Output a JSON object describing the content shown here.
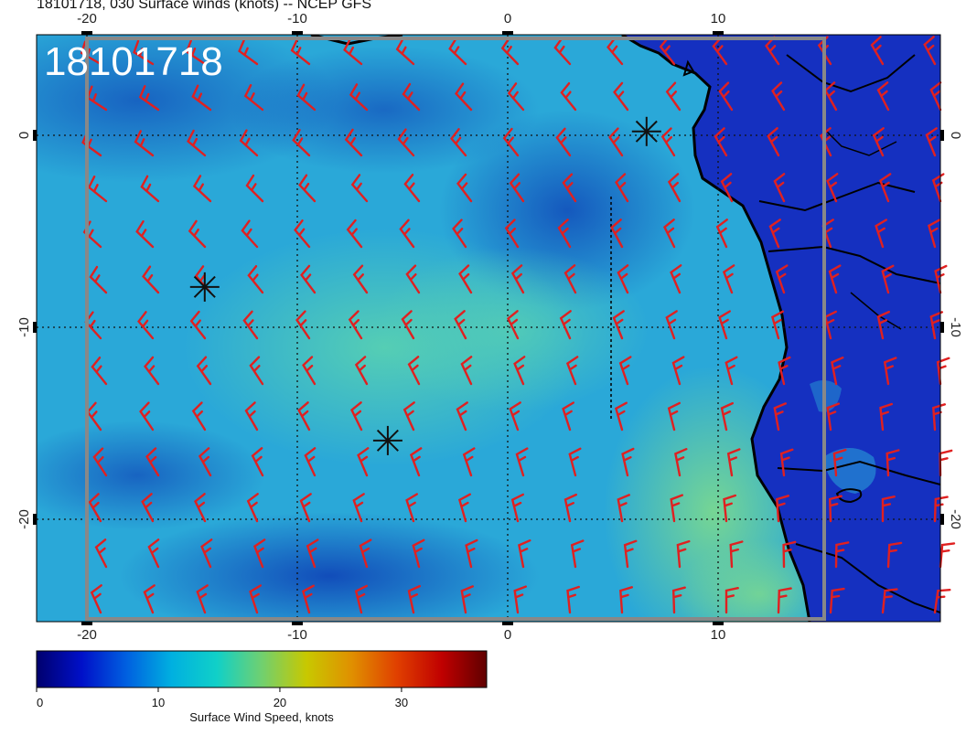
{
  "header": {
    "title": "18101718, 030 Surface winds (knots) -- NCEP GFS"
  },
  "map": {
    "overlay_label": "18101718",
    "lon_ticks": [
      "-20",
      "-10",
      "0",
      "10"
    ],
    "lat_ticks": [
      "0",
      "-10",
      "-20"
    ],
    "ocean_color": "#2aa8d8",
    "land_color": "#1530c0",
    "barb_color": "#e02020",
    "storm_markers": [
      {
        "name": "marker-1",
        "lon": 6.6,
        "lat": 0.2
      },
      {
        "name": "marker-2",
        "lon": -14.4,
        "lat": -7.9
      },
      {
        "name": "marker-3",
        "lon": -5.7,
        "lat": -15.9
      }
    ]
  },
  "colorbar": {
    "label": "Surface Wind Speed, knots",
    "ticks": [
      "0",
      "10",
      "20",
      "30"
    ],
    "tick_values": [
      0,
      10,
      20,
      30
    ],
    "max_value": 37,
    "colors": [
      "#00006e",
      "#0010c8",
      "#0060e0",
      "#00b0e0",
      "#10d0c8",
      "#70d070",
      "#c8c800",
      "#e09000",
      "#e04000",
      "#c00000",
      "#600000"
    ]
  }
}
